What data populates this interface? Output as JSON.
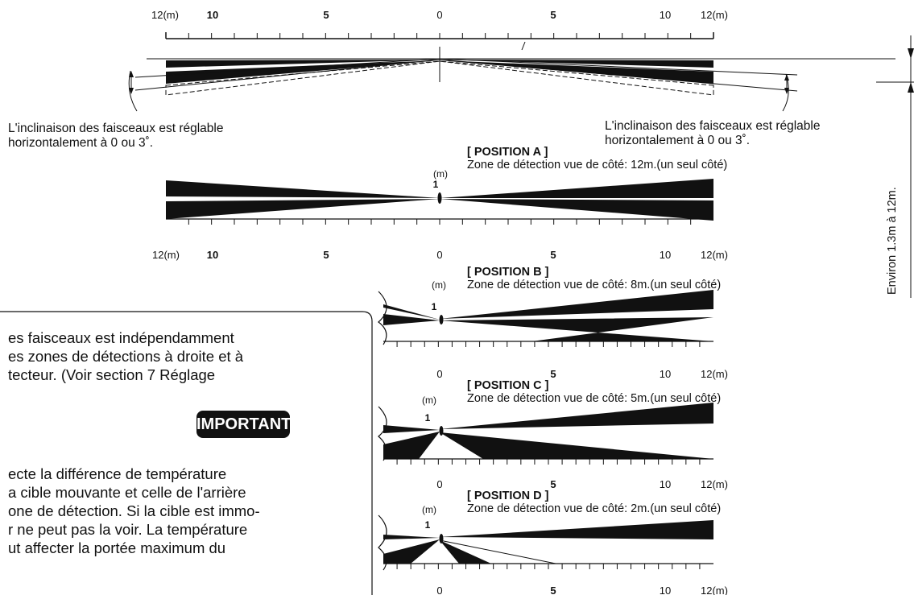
{
  "scale": {
    "left_end": "12(m)",
    "left_labels": [
      "10",
      "5"
    ],
    "center": "0",
    "right_labels": [
      "5",
      "10"
    ],
    "right_end": "12(m)",
    "unit": "(m)",
    "height_mark": "1"
  },
  "notes": {
    "left_line1": "L'inclinaison des faisceaux est réglable",
    "left_line2": "horizontalement à 0 ou 3˚.",
    "right_line1": "L'inclinaison des faisceaux est réglable",
    "right_line2": "horizontalement à 0 ou 3˚."
  },
  "vertical_label": "Environ 1.3m à 12m.",
  "positions": [
    {
      "title": "[ POSITION A ]",
      "desc": "Zone de détection vue de côté: 12m.(un seul côté)"
    },
    {
      "title": "[ POSITION B ]",
      "desc": "Zone de détection vue de côté: 8m.(un seul côté)"
    },
    {
      "title": "[ POSITION C ]",
      "desc": "Zone de détection vue de côté: 5m.(un seul côté)"
    },
    {
      "title": "[ POSITION D ]",
      "desc": "Zone de détection vue de côté: 2m.(un seul côté)"
    }
  ],
  "box": {
    "line1": "es faisceaux est indépendamment",
    "line2": "es zones de détections à droite et à",
    "line3": "tecteur. (Voir section 7 Réglage",
    "important_label": "IMPORTANT",
    "line4": "ecte la différence de température",
    "line5": "a cible mouvante et celle de l'arrière",
    "line6": "one de détection. Si la cible est immo-",
    "line7": "r ne peut pas la voir. La température",
    "line8": "ut affecter la portée maximum du"
  }
}
